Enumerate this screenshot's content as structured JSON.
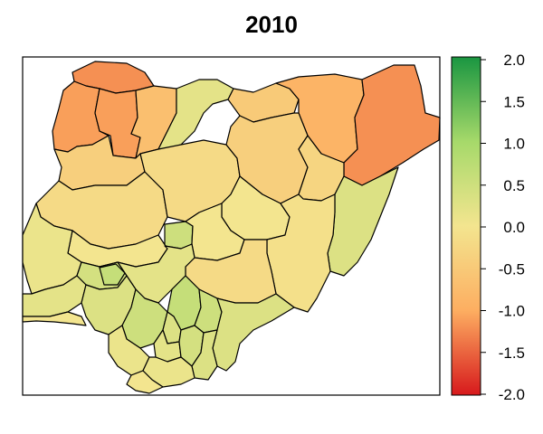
{
  "title": "2010",
  "map": {
    "regions": [
      {
        "id": "sokoto",
        "value": -1.2
      },
      {
        "id": "zamfara",
        "value": -1.1
      },
      {
        "id": "kebbi-north",
        "value": -1.1
      },
      {
        "id": "katsina",
        "value": -0.7
      },
      {
        "id": "kano",
        "value": -0.5
      },
      {
        "id": "jigawa",
        "value": 0.2
      },
      {
        "id": "yobe",
        "value": -0.9
      },
      {
        "id": "borno",
        "value": -1.2
      },
      {
        "id": "kebbi-south",
        "value": -0.4
      },
      {
        "id": "niger",
        "value": -0.2
      },
      {
        "id": "kaduna",
        "value": -0.2
      },
      {
        "id": "bauchi",
        "value": -0.4
      },
      {
        "id": "gombe",
        "value": -0.3
      },
      {
        "id": "adamawa",
        "value": 0.3
      },
      {
        "id": "kwara",
        "value": 0.0
      },
      {
        "id": "fct",
        "value": 0.5
      },
      {
        "id": "nasarawa",
        "value": 0.0
      },
      {
        "id": "plateau",
        "value": 0.0
      },
      {
        "id": "taraba",
        "value": -0.1
      },
      {
        "id": "oyo",
        "value": 0.1
      },
      {
        "id": "kogi",
        "value": 0.2
      },
      {
        "id": "benue",
        "value": -0.2
      },
      {
        "id": "ogun",
        "value": 0.2
      },
      {
        "id": "osun",
        "value": 0.4
      },
      {
        "id": "ekiti",
        "value": 0.6
      },
      {
        "id": "ondo",
        "value": 0.3
      },
      {
        "id": "edo",
        "value": 0.5
      },
      {
        "id": "enugu",
        "value": 0.6
      },
      {
        "id": "ebonyi",
        "value": 0.5
      },
      {
        "id": "cross-river",
        "value": 0.3
      },
      {
        "id": "delta",
        "value": 0.1
      },
      {
        "id": "anambra",
        "value": 0.3
      },
      {
        "id": "imo",
        "value": 0.2
      },
      {
        "id": "abia",
        "value": 0.4
      },
      {
        "id": "bayelsa",
        "value": 0.0
      },
      {
        "id": "rivers",
        "value": 0.1
      },
      {
        "id": "akwa-ibom",
        "value": 0.3
      },
      {
        "id": "lagos",
        "value": 0.0
      }
    ]
  },
  "legend": {
    "min": -2.0,
    "max": 2.0,
    "ticks": [
      "2.0",
      "1.5",
      "1.0",
      "0.5",
      "0.0",
      "-0.5",
      "-1.0",
      "-1.5",
      "-2.0"
    ],
    "colors": [
      "#d7191c",
      "#fdae61",
      "#f3e58f",
      "#a6d96a",
      "#1a9641"
    ]
  }
}
